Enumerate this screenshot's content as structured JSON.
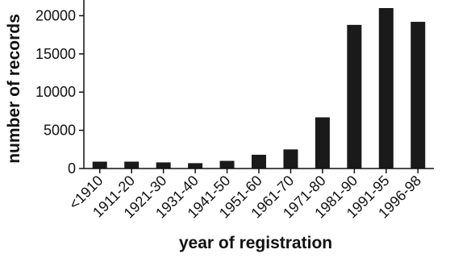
{
  "chart_data": {
    "type": "bar",
    "title": "",
    "xlabel": "year of registration",
    "ylabel": "number of records",
    "categories": [
      "<1910",
      "1911-20",
      "1921-30",
      "1931-40",
      "1941-50",
      "1951-60",
      "1961-70",
      "1971-80",
      "1981-90",
      "1991-95",
      "1996-98"
    ],
    "values": [
      900,
      900,
      800,
      700,
      1000,
      1800,
      2500,
      6700,
      18800,
      21000,
      19200
    ],
    "ylim": [
      0,
      21000
    ],
    "yticks": [
      0,
      5000,
      10000,
      15000,
      20000
    ],
    "ytick_labels": [
      "0",
      "5000",
      "10000",
      "15000",
      "20000"
    ],
    "grid": false,
    "legend": "none",
    "bar_color": "#1a1a1a",
    "axis_color": "#111111"
  }
}
